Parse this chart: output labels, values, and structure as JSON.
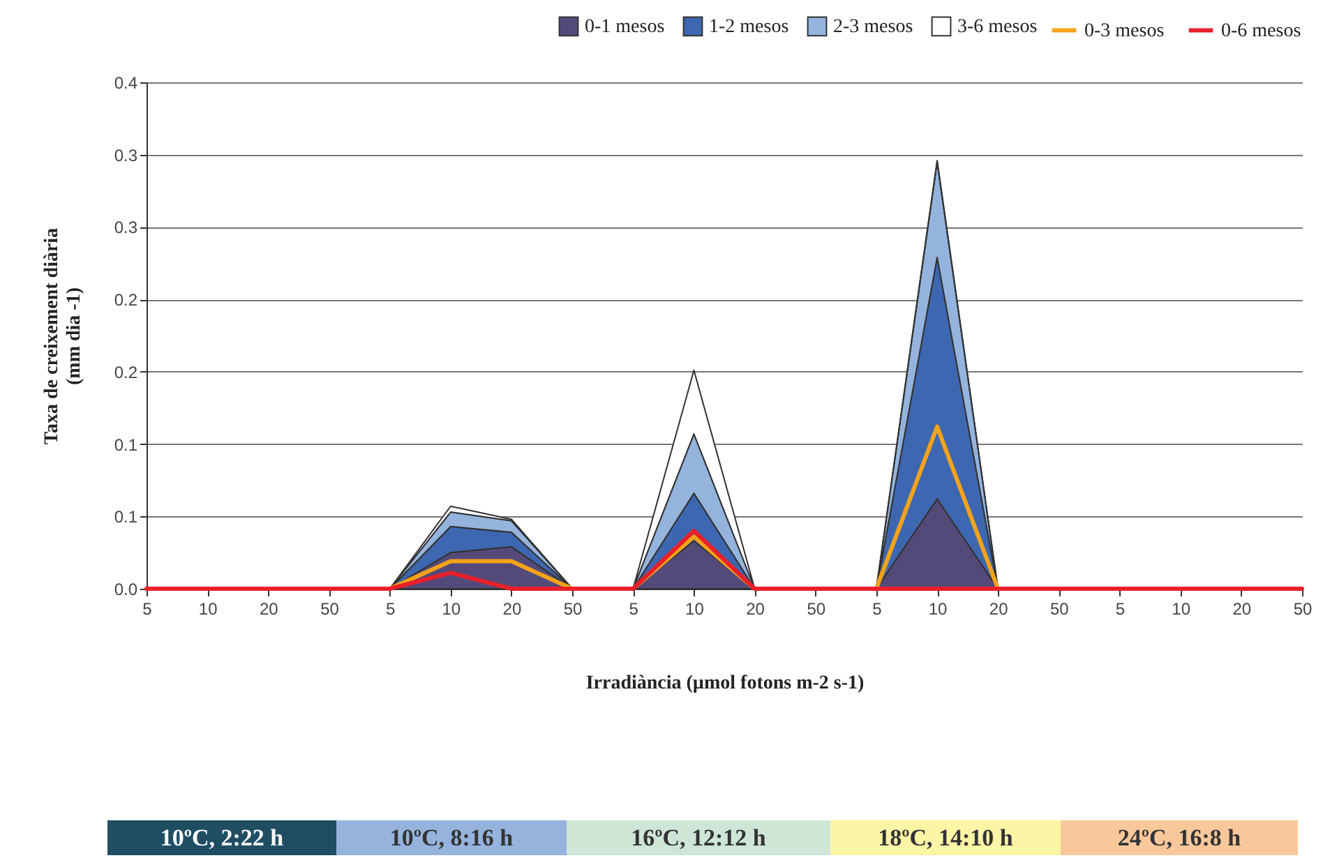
{
  "chart_data": {
    "type": "area",
    "stacked": true,
    "xlabel": "Irradiància (µmol fotons m-2 s-1)",
    "ylabel": "Taxa de creixement diària\n(mm dia -1)",
    "categories": [
      "5",
      "10",
      "20",
      "50",
      "5",
      "10",
      "20",
      "50",
      "5",
      "10",
      "20",
      "50",
      "5",
      "10",
      "20",
      "50",
      "5",
      "10",
      "20",
      "50"
    ],
    "series": [
      {
        "name": "0-1 mesos",
        "color": "#544a7a",
        "values": [
          0,
          0,
          0,
          0,
          0,
          0.025,
          0.029,
          0,
          0,
          0.033,
          0,
          0,
          0,
          0.062,
          0,
          0,
          0,
          0,
          0,
          0
        ]
      },
      {
        "name": "1-2 mesos",
        "color": "#3d67b0",
        "values": [
          0,
          0,
          0,
          0,
          0,
          0.018,
          0.01,
          0,
          0,
          0.033,
          0,
          0,
          0,
          0.167,
          0,
          0,
          0,
          0,
          0,
          0
        ]
      },
      {
        "name": "2-3 mesos",
        "color": "#94b4de",
        "values": [
          0,
          0,
          0,
          0,
          0,
          0.01,
          0.008,
          0,
          0,
          0.041,
          0,
          0,
          0,
          0.066,
          0,
          0,
          0,
          0,
          0,
          0
        ]
      },
      {
        "name": "3-6 mesos",
        "color": "#ffffff",
        "values": [
          0,
          0,
          0,
          0,
          0,
          0.004,
          0.001,
          0,
          0,
          0.044,
          0,
          0,
          0,
          0.001,
          0,
          0,
          0,
          0,
          0,
          0
        ]
      },
      {
        "name": "0-3 mesos",
        "type": "line",
        "color": "#f5a31a",
        "values": [
          null,
          null,
          null,
          null,
          0,
          0.019,
          0.019,
          0,
          0,
          0.036,
          0,
          null,
          0,
          0.112,
          0,
          null,
          null,
          null,
          null,
          null
        ]
      },
      {
        "name": "0-6 mesos",
        "type": "line",
        "color": "#e8202a",
        "values": [
          0,
          0,
          0,
          0,
          0,
          0.011,
          0,
          0,
          0,
          0.04,
          0,
          0,
          0,
          0,
          0,
          0,
          0,
          0,
          0,
          0
        ]
      }
    ],
    "ylim": [
      0,
      0.35
    ],
    "yticks": [
      {
        "value": 0,
        "label": "0.0"
      },
      {
        "value": 0.05,
        "label": "0.1"
      },
      {
        "value": 0.1,
        "label": "0.1"
      },
      {
        "value": 0.15,
        "label": "0.2"
      },
      {
        "value": 0.2,
        "label": "0.2"
      },
      {
        "value": 0.25,
        "label": "0.3"
      },
      {
        "value": 0.3,
        "label": "0.3"
      },
      {
        "value": 0.35,
        "label": "0.4"
      }
    ],
    "grid": "y",
    "legend": "top",
    "annotations": [
      "10ºC, 2:22 h",
      "10ºC, 8:16 h",
      "16ºC, 12:12 h",
      "18ºC, 14:10 h",
      "24ºC, 16:8 h"
    ]
  }
}
